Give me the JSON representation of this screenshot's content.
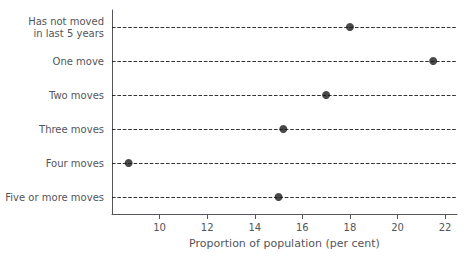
{
  "chart_data": {
    "type": "scatter",
    "categories": [
      "Five or more moves",
      "Four moves",
      "Three moves",
      "Two moves",
      "One move",
      "Has not moved\nin last 5 years"
    ],
    "values": [
      15.0,
      8.7,
      15.2,
      17.0,
      21.5,
      18.0
    ],
    "color": "#1a1a1a",
    "line_style": "dashed",
    "xlim": [
      8,
      22.5
    ],
    "xticks": [
      10,
      12,
      14,
      16,
      18,
      20,
      22
    ],
    "xlabel": "Proportion of population (per cent)",
    "grid": false
  }
}
